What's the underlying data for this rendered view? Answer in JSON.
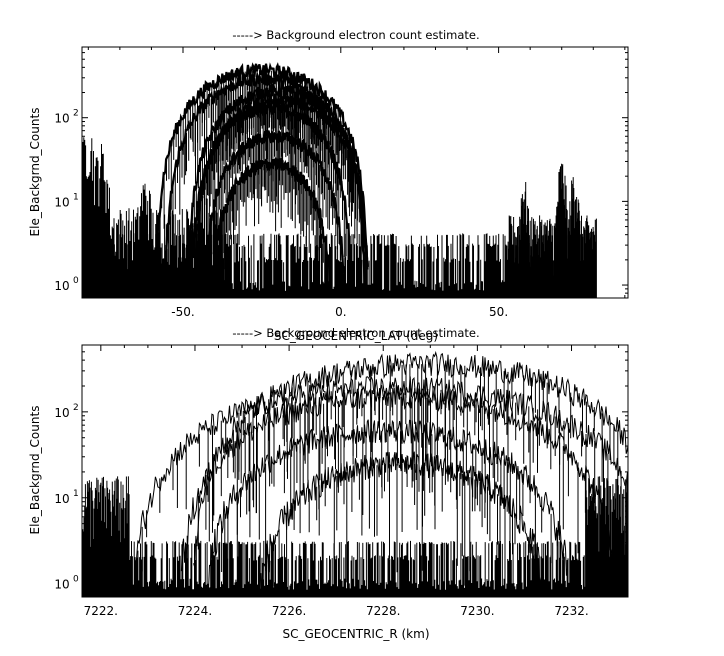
{
  "chart_data": [
    {
      "type": "scatter",
      "title": "-----> Background electron count estimate.",
      "xlabel": "SC_GEOCENTRIC_LAT (deg)",
      "ylabel": "Ele_Backgrnd_Counts",
      "xlim": [
        -82,
        91
      ],
      "ylim": [
        0.7,
        700
      ],
      "yscale": "log",
      "x_ticks": [
        -50,
        0,
        50
      ],
      "x_tick_labels": [
        "-50.",
        "0.",
        "50."
      ],
      "y_ticks": [
        1,
        10,
        100
      ],
      "y_tick_labels": [
        "10",
        "10",
        "10"
      ],
      "y_tick_exponents": [
        "0",
        "1",
        "2"
      ],
      "grid": false,
      "noise_floor": {
        "x_range": [
          -82,
          81
        ],
        "levels": [
          1,
          2,
          3,
          4
        ]
      },
      "left_spikes": {
        "x_range": [
          -82,
          -37
        ],
        "baseline": 5,
        "peaks": [
          {
            "x": -80,
            "y": 50
          },
          {
            "x": -76,
            "y": 30
          },
          {
            "x": -62,
            "y": 12
          },
          {
            "x": -44,
            "y": 10
          }
        ]
      },
      "right_spikes": {
        "x_range": [
          53,
          81
        ],
        "baseline": 4,
        "peaks": [
          {
            "x": 58,
            "y": 12
          },
          {
            "x": 70,
            "y": 20
          },
          {
            "x": 74,
            "y": 15
          }
        ]
      },
      "series": [
        {
          "center": -25,
          "half_width": 34,
          "peak": 370
        },
        {
          "center": -24,
          "half_width": 32,
          "peak": 290
        },
        {
          "center": -20,
          "half_width": 29,
          "peak": 210
        },
        {
          "center": -19,
          "half_width": 28,
          "peak": 160
        },
        {
          "center": -22,
          "half_width": 26,
          "peak": 130
        },
        {
          "center": -21,
          "half_width": 23,
          "peak": 60
        },
        {
          "center": -22,
          "half_width": 20,
          "peak": 28
        }
      ]
    },
    {
      "type": "line",
      "title": "-----> Background electron count estimate.",
      "xlabel": "SC_GEOCENTRIC_R (km)",
      "ylabel": "Ele_Backgrnd_Counts",
      "xlim": [
        7221.6,
        7233.2
      ],
      "ylim": [
        0.7,
        600
      ],
      "yscale": "log",
      "x_ticks": [
        7222,
        7224,
        7226,
        7228,
        7230,
        7232
      ],
      "x_tick_labels": [
        "7222.",
        "7224.",
        "7226.",
        "7228.",
        "7230.",
        "7232."
      ],
      "y_ticks": [
        1,
        10,
        100
      ],
      "y_tick_labels": [
        "10",
        "10",
        "10"
      ],
      "y_tick_exponents": [
        "0",
        "1",
        "2"
      ],
      "grid": false,
      "noise_floor": {
        "x_range": [
          7221.6,
          7233.2
        ],
        "levels": [
          1,
          2,
          3
        ]
      },
      "series": [
        {
          "center": 7228.9,
          "half_width": 5.0,
          "peak": 360
        },
        {
          "center": 7228.2,
          "half_width": 5.6,
          "peak": 190
        },
        {
          "center": 7228.3,
          "half_width": 4.7,
          "peak": 150
        },
        {
          "center": 7228.1,
          "half_width": 4.0,
          "peak": 60
        },
        {
          "center": 7228.4,
          "half_width": 3.2,
          "peak": 25
        }
      ]
    }
  ]
}
